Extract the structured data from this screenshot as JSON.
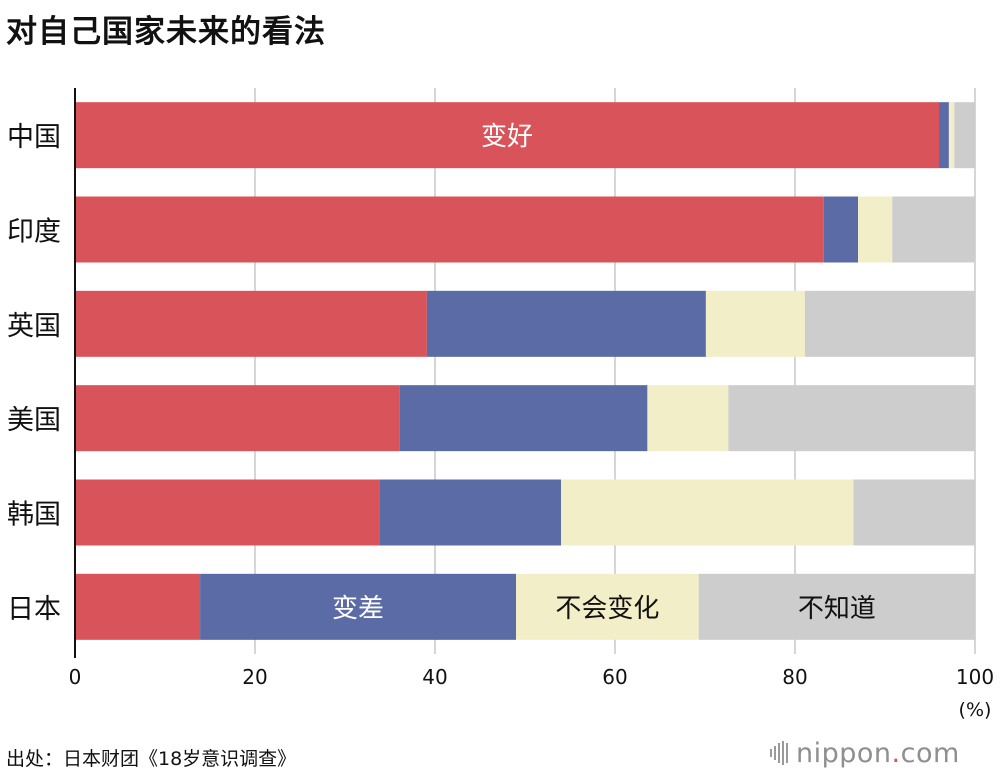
{
  "title": "对自己国家未来的看法",
  "source": "出处：日本财团《18岁意识调查》",
  "logo": {
    "name_left": "nippon",
    "dot": ".",
    "name_right": "com"
  },
  "colors": {
    "better": "#d9545a",
    "worse": "#5a6ba5",
    "nochange": "#f2eec8",
    "unknown": "#cdcdcd",
    "grid": "#c8c8c8"
  },
  "chart_data": {
    "type": "bar",
    "orientation": "horizontal",
    "stacked": true,
    "title": "对自己国家未来的看法",
    "categories": [
      "中国",
      "印度",
      "英国",
      "美国",
      "韩国",
      "日本"
    ],
    "series": [
      {
        "name": "变好",
        "values": [
          96.0,
          83.2,
          39.1,
          36.1,
          33.8,
          13.9
        ]
      },
      {
        "name": "变差",
        "values": [
          1.1,
          3.8,
          31.0,
          27.5,
          20.2,
          35.1
        ]
      },
      {
        "name": "不会变化",
        "values": [
          0.6,
          3.8,
          11.0,
          9.0,
          32.5,
          20.3
        ]
      },
      {
        "name": "不知道",
        "values": [
          2.3,
          9.2,
          18.9,
          27.4,
          13.5,
          30.7
        ]
      }
    ],
    "xlim": [
      0,
      100
    ],
    "xticks": [
      "0",
      "20",
      "40",
      "60",
      "80",
      "100"
    ],
    "xunit": "(%)",
    "grid": true,
    "inline_labels": [
      {
        "series": 0,
        "category": 0,
        "text": "变好"
      },
      {
        "series": 1,
        "category": 5,
        "text": "变差"
      },
      {
        "series": 2,
        "category": 5,
        "text": "不会变化"
      },
      {
        "series": 3,
        "category": 5,
        "text": "不知道"
      }
    ]
  }
}
